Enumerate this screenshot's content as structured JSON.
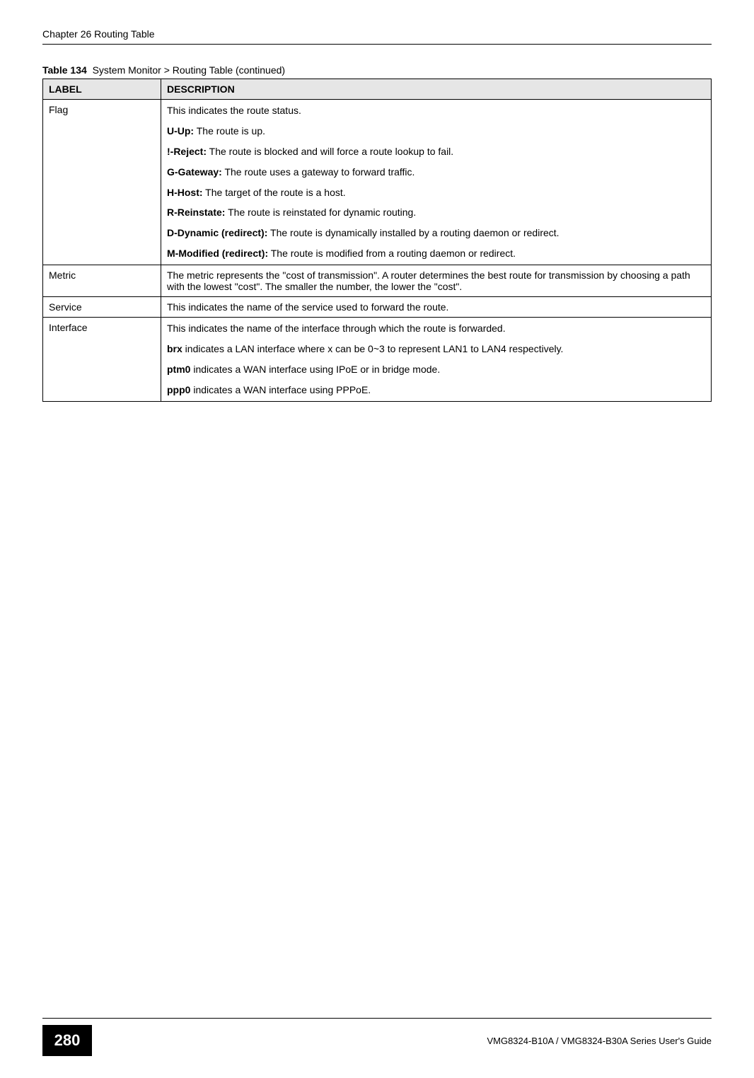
{
  "header": {
    "chapter": "Chapter 26 Routing Table"
  },
  "table": {
    "caption_label": "Table 134",
    "caption_text": "System Monitor > Routing Table (continued)",
    "columns": {
      "label": "LABEL",
      "description": "DESCRIPTION"
    },
    "rows": {
      "flag": {
        "label": "Flag",
        "intro": "This indicates the route status.",
        "u_label": "U-Up:",
        "u_text": " The route is up.",
        "reject_label": "!-Reject:",
        "reject_text": " The route is blocked and will force a route lookup to fail.",
        "g_label": "G-Gateway:",
        "g_text": " The route uses a gateway to forward traffic.",
        "h_label": "H-Host:",
        "h_text": " The target of the route is a host.",
        "r_label": "R-Reinstate:",
        "r_text": " The route is reinstated for dynamic routing.",
        "d_label": "D-Dynamic (redirect):",
        "d_text": " The route is dynamically installed by a routing daemon or redirect.",
        "m_label": "M-Modified (redirect):",
        "m_text": " The route is modified from a routing daemon or redirect."
      },
      "metric": {
        "label": "Metric",
        "text": "The metric represents the \"cost of transmission\". A router determines the best route for transmission by choosing a path with the lowest \"cost\". The smaller the number, the lower the \"cost\"."
      },
      "service": {
        "label": "Service",
        "text": "This indicates the name of the service used to forward the route."
      },
      "interface": {
        "label": "Interface",
        "intro": "This indicates the name of the interface through which the route is forwarded.",
        "brx_label": "brx",
        "brx_text": " indicates a LAN interface where x can be 0~3 to represent LAN1 to LAN4 respectively.",
        "ptm0_label": "ptm0",
        "ptm0_text": " indicates a WAN interface using IPoE or in bridge mode.",
        "ppp0_label": "ppp0",
        "ppp0_text": " indicates a WAN interface using PPPoE."
      }
    }
  },
  "footer": {
    "page_number": "280",
    "guide_text": "VMG8324-B10A / VMG8324-B30A Series User's Guide"
  }
}
